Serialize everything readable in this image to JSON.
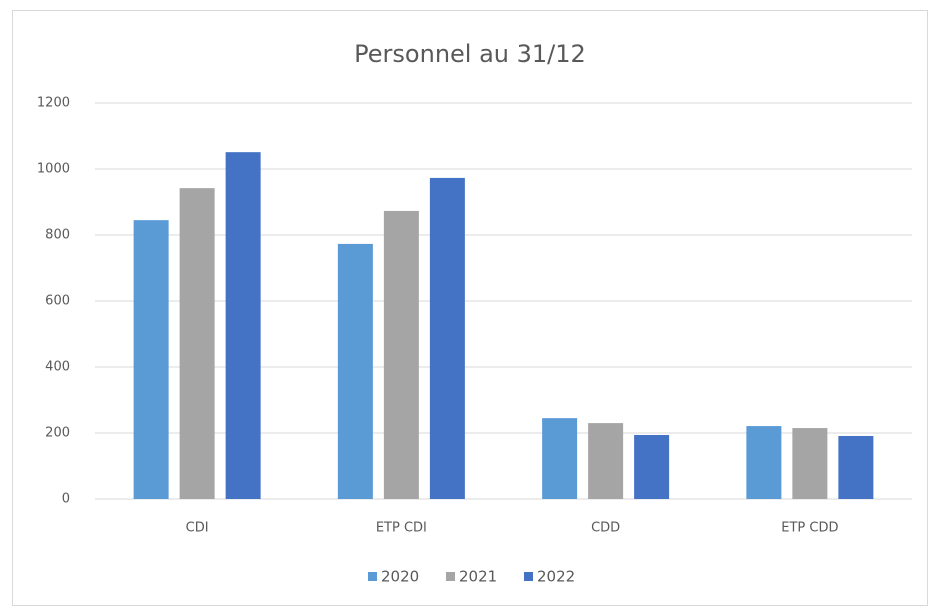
{
  "chart_data": {
    "type": "bar",
    "title": "Personnel au 31/12",
    "categories": [
      "CDI",
      "ETP CDI",
      "CDD",
      "ETP CDD"
    ],
    "series": [
      {
        "name": "2020",
        "color": "#5b9bd5",
        "values": [
          845,
          773,
          245,
          221
        ]
      },
      {
        "name": "2021",
        "color": "#a5a5a5",
        "values": [
          942,
          873,
          230,
          215
        ]
      },
      {
        "name": "2022",
        "color": "#4472c4",
        "values": [
          1051,
          973,
          194,
          191
        ]
      }
    ],
    "ylim": [
      0,
      1200
    ],
    "yticks": [
      0,
      200,
      400,
      600,
      800,
      1000,
      1200
    ],
    "grid": true,
    "legend": "bottom"
  }
}
